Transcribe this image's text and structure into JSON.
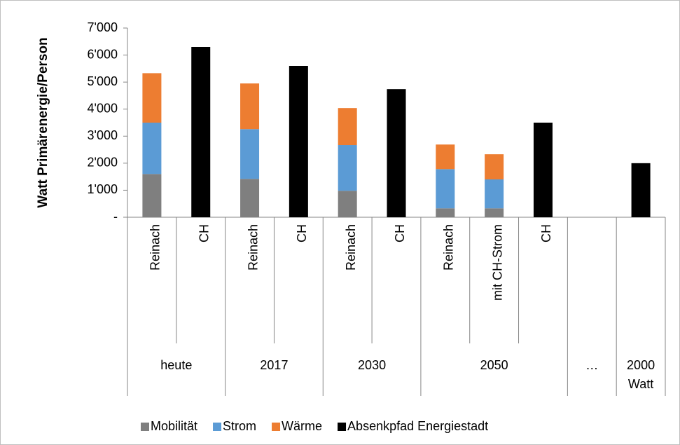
{
  "chart_data": {
    "type": "stacked-bar",
    "y_label": "Watt Primärenergie/Person",
    "groups": [
      {
        "name": "heute",
        "categories": [
          "Reinach",
          "CH"
        ]
      },
      {
        "name": "2017",
        "categories": [
          "Reinach",
          "CH"
        ]
      },
      {
        "name": "2030",
        "categories": [
          "Reinach",
          "CH"
        ]
      },
      {
        "name": "2050",
        "categories": [
          "Reinach",
          "mit CH-Strom",
          "CH"
        ]
      },
      {
        "name": "…",
        "categories": [
          null
        ]
      },
      {
        "name": "2000 Watt",
        "categories": [
          null
        ]
      }
    ],
    "series": [
      {
        "name": "Mobilität",
        "color": "#7f7f7f",
        "values": [
          1600,
          null,
          1420,
          null,
          980,
          null,
          330,
          330,
          null,
          null,
          null
        ]
      },
      {
        "name": "Strom",
        "color": "#5b9bd5",
        "values": [
          1900,
          null,
          1840,
          null,
          1690,
          null,
          1450,
          1070,
          null,
          null,
          null
        ]
      },
      {
        "name": "Wärme",
        "color": "#ed7d31",
        "values": [
          1830,
          null,
          1690,
          null,
          1370,
          null,
          910,
          930,
          null,
          null,
          null
        ]
      },
      {
        "name": "Absenkpfad Energiestadt",
        "color": "#000000",
        "values": [
          null,
          6300,
          null,
          5600,
          null,
          4740,
          null,
          null,
          3500,
          null,
          2000
        ]
      }
    ],
    "ylim": [
      0,
      7000
    ],
    "yticks": [
      {
        "value": 0,
        "label": "-"
      },
      {
        "value": 1000,
        "label": "1'000"
      },
      {
        "value": 2000,
        "label": "2'000"
      },
      {
        "value": 3000,
        "label": "3'000"
      },
      {
        "value": 4000,
        "label": "4'000"
      },
      {
        "value": 5000,
        "label": "5'000"
      },
      {
        "value": 6000,
        "label": "6'000"
      },
      {
        "value": 7000,
        "label": "7'000"
      }
    ],
    "legend": "bottom"
  }
}
